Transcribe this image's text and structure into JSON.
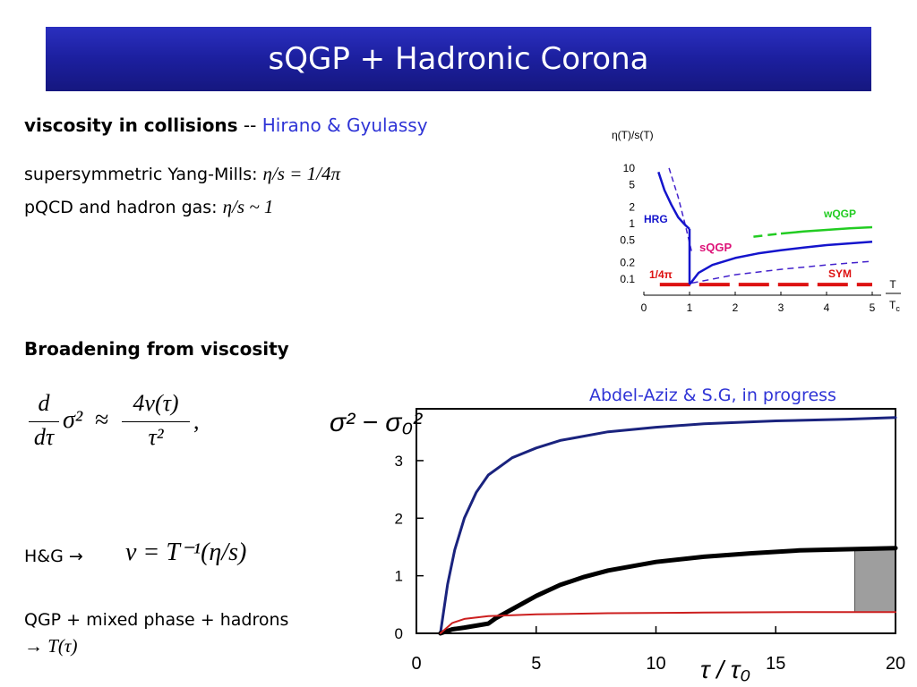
{
  "slide": {
    "title": "sQGP + Hadronic Corona",
    "heading1": "viscosity in collisions",
    "heading1_sep": " -- ",
    "heading1_ref": "Hirano & Gyulassy",
    "line_sym_label": "supersymmetric Yang-Mills: ",
    "line_sym_eq": "η/s = 1/4π",
    "line_pqcd_label": "pQCD and hadron gas: ",
    "line_pqcd_eq": "η/s ~ 1",
    "heading2": "Broadening from viscosity",
    "hg_label": "H&G →",
    "hg_eq": "ν = T⁻¹(η/s)",
    "qgp_line": "QGP + mixed phase + hadrons",
    "qgp_arrow": "→ T(τ)",
    "credit": "Abdel-Aziz & S.G, in progress"
  },
  "formula": {
    "lhs_num": "d",
    "lhs_den": "dτ",
    "sigma": "σ²",
    "approx": "≈",
    "rhs_num": "4ν(τ)",
    "rhs_den": "τ²",
    "comma": ","
  },
  "colors": {
    "title_bg": "#1c1f9e",
    "title_fg": "#ffffff",
    "accent_blue": "#2f34d6",
    "curve_navy": "#1a237e",
    "curve_black": "#000000",
    "curve_red": "#cc1f1f",
    "band_gray": "#9e9e9e",
    "inset_blue": "#1414cc",
    "inset_green": "#22cc22",
    "inset_red": "#dd1111",
    "inset_magenta": "#dd1177",
    "inset_purple": "#4422cc"
  },
  "chart_data": [
    {
      "type": "line",
      "title": "",
      "ylabel": "σ² − σ₀²",
      "xlabel": "τ / τ₀",
      "xlim": [
        0,
        20
      ],
      "ylim": [
        0,
        3.9
      ],
      "xticks": [
        0,
        5,
        10,
        15,
        20
      ],
      "yticks": [
        0,
        1,
        2,
        3
      ],
      "grid": false,
      "series": [
        {
          "style": "navy",
          "x": [
            1,
            1.3,
            1.6,
            2,
            2.5,
            3,
            4,
            5,
            6,
            8,
            10,
            12,
            15,
            18,
            20
          ],
          "y": [
            0,
            0.85,
            1.45,
            2.0,
            2.45,
            2.75,
            3.05,
            3.22,
            3.35,
            3.5,
            3.58,
            3.64,
            3.69,
            3.72,
            3.75
          ]
        },
        {
          "style": "black",
          "x": [
            1,
            1.5,
            2,
            3,
            3.3,
            4,
            5,
            6,
            7,
            8,
            10,
            12,
            14,
            16,
            18,
            20
          ],
          "y": [
            0,
            0.07,
            0.1,
            0.17,
            0.26,
            0.42,
            0.65,
            0.84,
            0.98,
            1.09,
            1.24,
            1.33,
            1.39,
            1.44,
            1.46,
            1.48
          ]
        },
        {
          "style": "red",
          "x": [
            1,
            1.5,
            2,
            3,
            5,
            8,
            12,
            16,
            20
          ],
          "y": [
            0,
            0.18,
            0.25,
            0.3,
            0.33,
            0.35,
            0.36,
            0.37,
            0.37
          ]
        }
      ],
      "band": {
        "x": [
          18.3,
          20
        ],
        "y": [
          0.37,
          1.47
        ]
      }
    },
    {
      "type": "line",
      "title": "",
      "ylabel": "η(T)/s(T)",
      "xlabel": "T / Tc",
      "xlim": [
        0,
        5
      ],
      "ylim": [
        0.1,
        10
      ],
      "log_y": true,
      "xticks": [
        0,
        1,
        2,
        3,
        4,
        5
      ],
      "yticks": [
        10,
        5,
        2,
        1,
        0.5,
        0.2,
        0.1
      ],
      "annotations": [
        "HRG",
        "sQGP",
        "wQGP",
        "1/4π",
        "SYM"
      ],
      "series": [
        {
          "name": "HRG",
          "x": [
            0.32,
            0.45,
            0.6,
            0.75,
            0.9,
            1.0
          ],
          "y": [
            8.5,
            4.0,
            2.2,
            1.3,
            0.95,
            0.8
          ]
        },
        {
          "name": "sQGP",
          "x": [
            1.0,
            1.05,
            1.2,
            1.5,
            2,
            2.5,
            3,
            3.5,
            4,
            4.5,
            5
          ],
          "y": [
            0.08,
            0.09,
            0.13,
            0.18,
            0.24,
            0.29,
            0.33,
            0.37,
            0.41,
            0.44,
            0.47
          ]
        },
        {
          "name": "wQGP",
          "x": [
            2.4,
            3,
            3.5,
            4,
            4.5,
            5
          ],
          "y": [
            0.58,
            0.66,
            0.72,
            0.77,
            0.82,
            0.86
          ]
        },
        {
          "name": "SYM",
          "x": [
            0.35,
            5
          ],
          "y": [
            0.0796,
            0.0796
          ]
        },
        {
          "name": "hadron-dashed",
          "x": [
            0.55,
            0.75,
            0.9,
            1.0,
            1.05
          ],
          "y": [
            10,
            3.0,
            1.0,
            0.45,
            0.3
          ]
        },
        {
          "name": "qgp-dashed",
          "x": [
            1.05,
            1.5,
            2,
            3,
            4,
            5
          ],
          "y": [
            0.085,
            0.1,
            0.12,
            0.15,
            0.18,
            0.21
          ]
        }
      ]
    }
  ]
}
